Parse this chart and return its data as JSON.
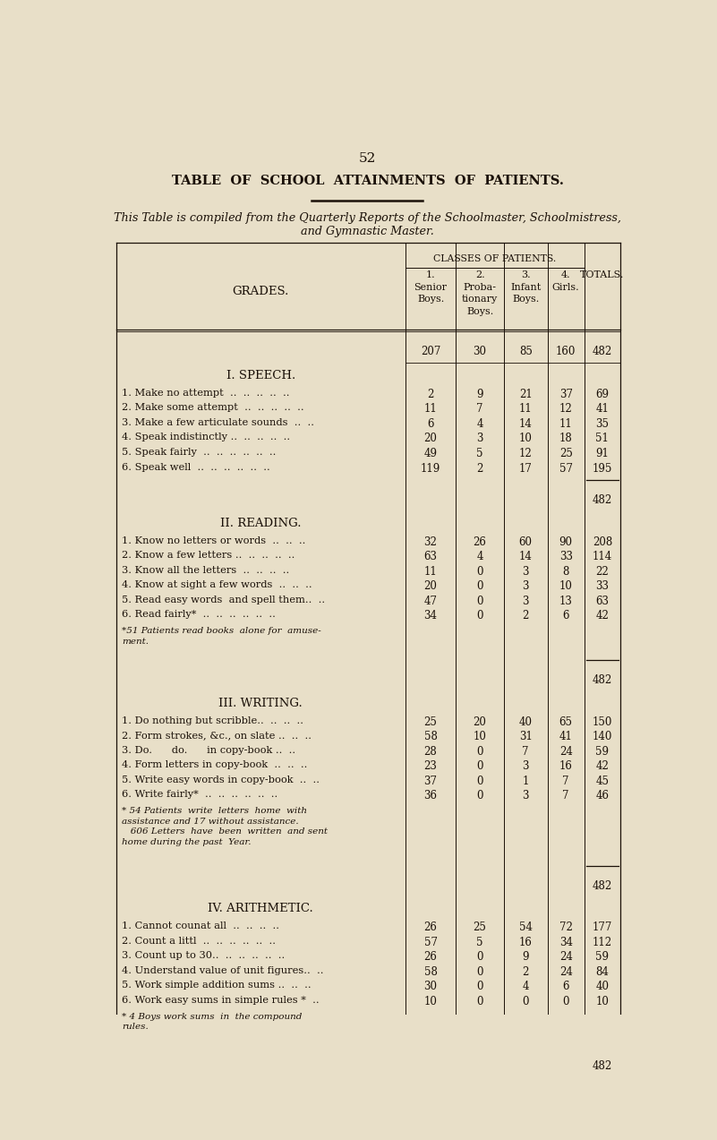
{
  "page_number": "52",
  "title": "TABLE  OF  SCHOOL  ATTAINMENTS  OF  PATIENTS.",
  "subtitle1": "This Table is compiled from the Quarterly Reports of the Schoolmaster, Schoolmistress,",
  "subtitle2": "and Gymnastic Master.",
  "bg_color": "#e8dfc8",
  "text_color": "#1a1008",
  "col_headers_main": "CLASSES OF PATIENTS.",
  "totals_row": [
    "207",
    "30",
    "85",
    "160",
    "482"
  ],
  "sections": [
    {
      "title": "I. SPEECH.",
      "rows": [
        [
          "1. Make no attempt  ..  ..  ..  ..  ..",
          "2",
          "9",
          "21",
          "37",
          "69"
        ],
        [
          "2. Make some attempt  ..  ..  ..  ..  ..",
          "11",
          "7",
          "11",
          "12",
          "41"
        ],
        [
          "3. Make a few articulate sounds  ..  ..",
          "6",
          "4",
          "14",
          "11",
          "35"
        ],
        [
          "4. Speak indistinctly ..  ..  ..  ..  ..",
          "20",
          "3",
          "10",
          "18",
          "51"
        ],
        [
          "5. Speak fairly  ..  ..  ..  ..  ..  ..",
          "49",
          "5",
          "12",
          "25",
          "91"
        ],
        [
          "6. Speak well  ..  ..  ..  ..  ..  ..",
          "119",
          "2",
          "17",
          "57",
          "195"
        ]
      ],
      "footnote": null,
      "section_total": "482"
    },
    {
      "title": "II. READING.",
      "rows": [
        [
          "1. Know no letters or words  ..  ..  ..",
          "32",
          "26",
          "60",
          "90",
          "208"
        ],
        [
          "2. Know a few letters ..  ..  ..  ..  ..",
          "63",
          "4",
          "14",
          "33",
          "114"
        ],
        [
          "3. Know all the letters  ..  ..  ..  ..",
          "11",
          "0",
          "3",
          "8",
          "22"
        ],
        [
          "4. Know at sight a few words  ..  ..  ..",
          "20",
          "0",
          "3",
          "10",
          "33"
        ],
        [
          "5. Read easy words  and spell them..  ..",
          "47",
          "0",
          "3",
          "13",
          "63"
        ],
        [
          "6. Read fairly*  ..  ..  ..  ..  ..  ..",
          "34",
          "0",
          "2",
          "6",
          "42"
        ]
      ],
      "footnote": "*51 Patients read books  alone for  amuse-\nment.",
      "section_total": "482"
    },
    {
      "title": "III. WRITING.",
      "rows": [
        [
          "1. Do nothing but scribble..  ..  ..  ..",
          "25",
          "20",
          "40",
          "65",
          "150"
        ],
        [
          "2. Form strokes, &c., on slate ..  ..  ..",
          "58",
          "10",
          "31",
          "41",
          "140"
        ],
        [
          "3. Do.      do.      in copy-book ..  ..",
          "28",
          "0",
          "7",
          "24",
          "59"
        ],
        [
          "4. Form letters in copy-book  ..  ..  ..",
          "23",
          "0",
          "3",
          "16",
          "42"
        ],
        [
          "5. Write easy words in copy-book  ..  ..",
          "37",
          "0",
          "1",
          "7",
          "45"
        ],
        [
          "6. Write fairly*  ..  ..  ..  ..  ..  ..",
          "36",
          "0",
          "3",
          "7",
          "46"
        ]
      ],
      "footnote": "* 54 Patients  write  letters  home  with\nassistance and 17 without assistance.\n   606 Letters  have  been  written  and sent\nhome during the past  Year.",
      "section_total": "482"
    },
    {
      "title": "IV. ARITHMETIC.",
      "rows": [
        [
          "1. Cannot counat all  ..  ..  ..  ..",
          "26",
          "25",
          "54",
          "72",
          "177"
        ],
        [
          "2. Count a littl  ..  ..  ..  ..  ..  ..",
          "57",
          "5",
          "16",
          "34",
          "112"
        ],
        [
          "3. Count up to 30..  ..  ..  ..  ..  ..",
          "26",
          "0",
          "9",
          "24",
          "59"
        ],
        [
          "4. Understand value of unit figures..  ..",
          "58",
          "0",
          "2",
          "24",
          "84"
        ],
        [
          "5. Work simple addition sums ..  ..  ..",
          "30",
          "0",
          "4",
          "6",
          "40"
        ],
        [
          "6. Work easy sums in simple rules *  ..",
          "10",
          "0",
          "0",
          "0",
          "10"
        ]
      ],
      "footnote": "* 4 Boys work sums  in  the compound\nrules.",
      "section_total": "482"
    }
  ]
}
